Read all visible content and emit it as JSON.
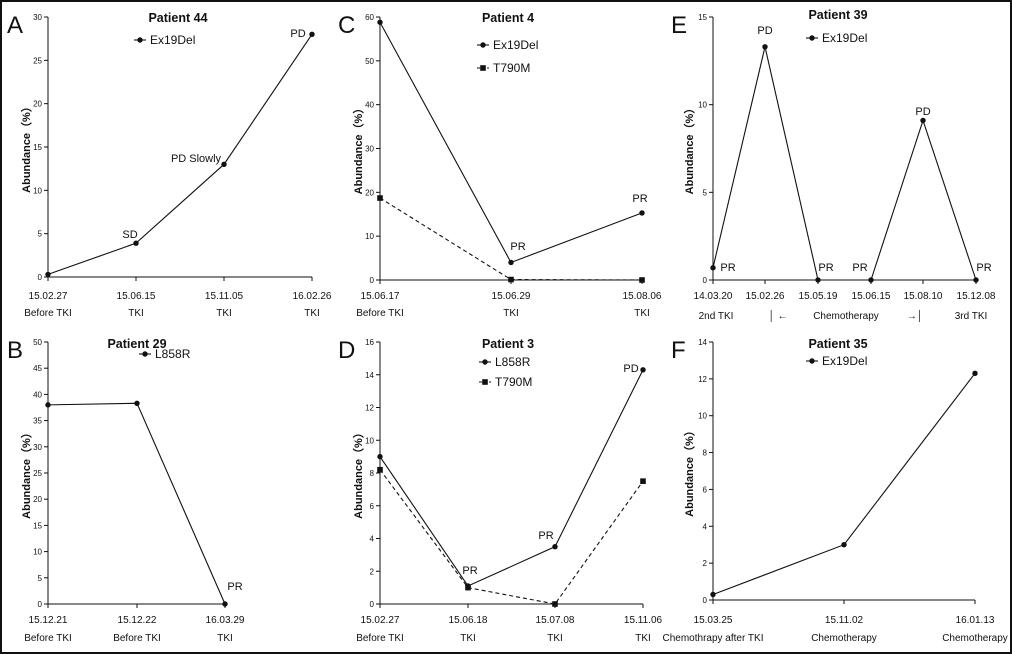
{
  "chart_data": [
    {
      "id": "A",
      "type": "line",
      "letter": "A",
      "title": "Patient 44",
      "ylabel": "Abundance（%）",
      "ylim": [
        0,
        30
      ],
      "yticks": [
        0,
        5,
        10,
        15,
        20,
        25,
        30
      ],
      "categories": [
        "15.02.27",
        "15.06.15",
        "15.11.05",
        "16.02.26"
      ],
      "subcategories": [
        "Before TKI",
        "TKI",
        "TKI",
        "TKI"
      ],
      "series": [
        {
          "name": "Ex19Del",
          "style": "solid",
          "marker": "circle",
          "values": [
            0.3,
            3.9,
            13.0,
            28.0
          ]
        }
      ],
      "annotations": [
        {
          "text": "SD",
          "series": 0,
          "index": 1
        },
        {
          "text": "PD Slowly",
          "series": 0,
          "index": 2
        },
        {
          "text": "PD",
          "series": 0,
          "index": 3
        }
      ],
      "extra_labels": []
    },
    {
      "id": "C",
      "type": "line",
      "letter": "C",
      "title": "Patient 4",
      "ylabel": "Abundance（%）",
      "ylim": [
        0,
        60
      ],
      "yticks": [
        0,
        10,
        20,
        30,
        40,
        50,
        60
      ],
      "categories": [
        "15.06.17",
        "15.06.29",
        "15.08.06"
      ],
      "subcategories": [
        "Before TKI",
        "TKI",
        "TKI"
      ],
      "series": [
        {
          "name": "Ex19Del",
          "style": "solid",
          "marker": "circle",
          "values": [
            58.8,
            4.0,
            15.3
          ]
        },
        {
          "name": "T790M",
          "style": "dashed",
          "marker": "square",
          "values": [
            18.7,
            0.1,
            0.0
          ]
        }
      ],
      "annotations": [
        {
          "text": "PR",
          "series": 0,
          "index": 1
        },
        {
          "text": "PR",
          "series": 0,
          "index": 2
        }
      ],
      "extra_labels": []
    },
    {
      "id": "E",
      "type": "line",
      "letter": "E",
      "title": "Patient 39",
      "ylabel": "Abundance（%）",
      "ylim": [
        0,
        15
      ],
      "yticks": [
        0,
        5,
        10,
        15
      ],
      "categories": [
        "14.03.20",
        "15.02.26",
        "15.05.19",
        "15.06.15",
        "15.08.10",
        "15.12.08"
      ],
      "subcategories": [],
      "series": [
        {
          "name": "Ex19Del",
          "style": "solid",
          "marker": "circle",
          "values": [
            0.7,
            13.3,
            0.0,
            0.0,
            9.1,
            0.0
          ]
        }
      ],
      "annotations": [
        {
          "text": "PR",
          "series": 0,
          "index": 0
        },
        {
          "text": "PD",
          "series": 0,
          "index": 1
        },
        {
          "text": "PR",
          "series": 0,
          "index": 2
        },
        {
          "text": "PR",
          "series": 0,
          "index": 3
        },
        {
          "text": "PD",
          "series": 0,
          "index": 4
        },
        {
          "text": "PR",
          "series": 0,
          "index": 5
        }
      ],
      "extra_labels": [
        "2nd TKI",
        "│ ←",
        "Chemotherapy",
        "→│",
        "3rd TKI"
      ]
    },
    {
      "id": "B",
      "type": "line",
      "letter": "B",
      "title": "Patient 29",
      "ylabel": "Abundance（%）",
      "ylim": [
        0,
        50
      ],
      "yticks": [
        0,
        5,
        10,
        15,
        20,
        25,
        30,
        35,
        40,
        45,
        50
      ],
      "categories": [
        "15.12.21",
        "15.12.22",
        "16.03.29"
      ],
      "subcategories": [
        "Before TKI",
        "Before TKI",
        "TKI"
      ],
      "series": [
        {
          "name": "L858R",
          "style": "solid",
          "marker": "circle",
          "values": [
            38.0,
            38.3,
            0.0
          ]
        }
      ],
      "annotations": [
        {
          "text": "PR",
          "series": 0,
          "index": 2
        }
      ],
      "extra_labels": []
    },
    {
      "id": "D",
      "type": "line",
      "letter": "D",
      "title": "Patient 3",
      "ylabel": "Abundance（%）",
      "ylim": [
        0,
        16
      ],
      "yticks": [
        0,
        2,
        4,
        6,
        8,
        10,
        12,
        14,
        16
      ],
      "categories": [
        "15.02.27",
        "15.06.18",
        "15.07.08",
        "15.11.06"
      ],
      "subcategories": [
        "Before TKI",
        "TKI",
        "TKI",
        "TKI"
      ],
      "series": [
        {
          "name": "L858R",
          "style": "solid",
          "marker": "circle",
          "values": [
            9.0,
            1.1,
            3.5,
            14.3
          ]
        },
        {
          "name": "T790M",
          "style": "dashed",
          "marker": "square",
          "values": [
            8.2,
            1.0,
            0.0,
            7.5
          ]
        }
      ],
      "annotations": [
        {
          "text": "PR",
          "series": 0,
          "index": 1
        },
        {
          "text": "PR",
          "series": 0,
          "index": 2
        },
        {
          "text": "PD",
          "series": 0,
          "index": 3
        }
      ],
      "extra_labels": []
    },
    {
      "id": "F",
      "type": "line",
      "letter": "F",
      "title": "Patient 35",
      "ylabel": "Abundance（%）",
      "ylim": [
        0,
        14
      ],
      "yticks": [
        0,
        2,
        4,
        6,
        8,
        10,
        12,
        14
      ],
      "categories": [
        "15.03.25",
        "15.11.02",
        "16.01.13"
      ],
      "subcategories": [
        "Chemothrapy after TKI",
        "Chemotherapy",
        "Chemotherapy"
      ],
      "series": [
        {
          "name": "Ex19Del",
          "style": "solid",
          "marker": "circle",
          "values": [
            0.3,
            3.0,
            12.3
          ]
        }
      ],
      "annotations": [],
      "extra_labels": []
    }
  ]
}
